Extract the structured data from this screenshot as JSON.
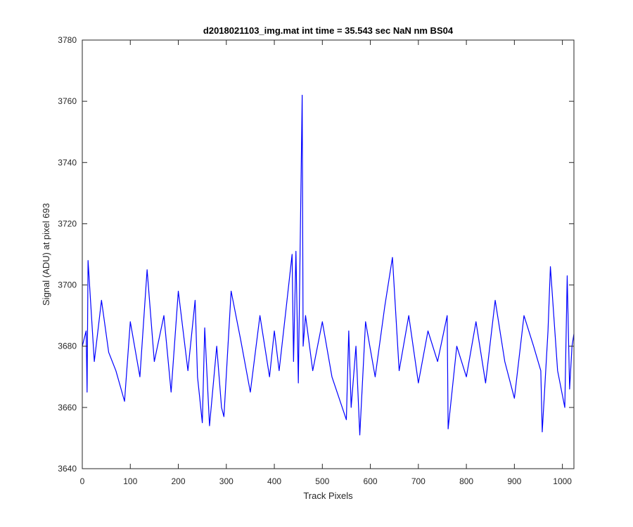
{
  "chart_data": {
    "type": "line",
    "title": "d2018021103_img.mat int time = 35.543 sec  NaN nm BS04",
    "xlabel": "Track Pixels",
    "ylabel": "Signal (ADU) at pixel 693",
    "xlim": [
      0,
      1024
    ],
    "ylim": [
      3640,
      3780
    ],
    "xticks": [
      0,
      100,
      200,
      300,
      400,
      500,
      600,
      700,
      800,
      900,
      1000
    ],
    "xtick_labels": [
      "0",
      "100",
      "200",
      "300",
      "400",
      "500",
      "600",
      "700",
      "800",
      "900",
      "1000"
    ],
    "yticks": [
      3640,
      3660,
      3680,
      3700,
      3720,
      3740,
      3760,
      3780
    ],
    "ytick_labels": [
      "3640",
      "3660",
      "3680",
      "3700",
      "3720",
      "3740",
      "3760",
      "3780"
    ],
    "grid": false,
    "line_color": "#0000ff",
    "series": [
      {
        "x": [
          0,
          8,
          10,
          12,
          25,
          40,
          55,
          70,
          88,
          100,
          120,
          135,
          150,
          170,
          185,
          200,
          220,
          235,
          240,
          250,
          255,
          265,
          280,
          290,
          295,
          310,
          330,
          350,
          370,
          390,
          400,
          410,
          425,
          437,
          440,
          445,
          450,
          458,
          460,
          465,
          480,
          500,
          520,
          550,
          555,
          560,
          570,
          578,
          590,
          610,
          630,
          646,
          660,
          680,
          700,
          720,
          740,
          760,
          762,
          780,
          800,
          820,
          840,
          860,
          880,
          900,
          920,
          940,
          955,
          958,
          970,
          975,
          990,
          1005,
          1010,
          1015,
          1020,
          1024
        ],
        "y": [
          3680,
          3685,
          3665,
          3708,
          3675,
          3695,
          3678,
          3672,
          3662,
          3688,
          3670,
          3705,
          3675,
          3690,
          3665,
          3698,
          3672,
          3695,
          3670,
          3655,
          3686,
          3654,
          3680,
          3660,
          3657,
          3698,
          3682,
          3665,
          3690,
          3670,
          3685,
          3672,
          3693,
          3710,
          3675,
          3711,
          3668,
          3762,
          3680,
          3690,
          3672,
          3688,
          3670,
          3656,
          3685,
          3660,
          3680,
          3651,
          3688,
          3670,
          3693,
          3709,
          3672,
          3690,
          3668,
          3685,
          3675,
          3690,
          3653,
          3680,
          3670,
          3688,
          3668,
          3695,
          3675,
          3663,
          3690,
          3680,
          3672,
          3652,
          3685,
          3706,
          3672,
          3660,
          3703,
          3666,
          3680,
          3684
        ]
      }
    ]
  }
}
